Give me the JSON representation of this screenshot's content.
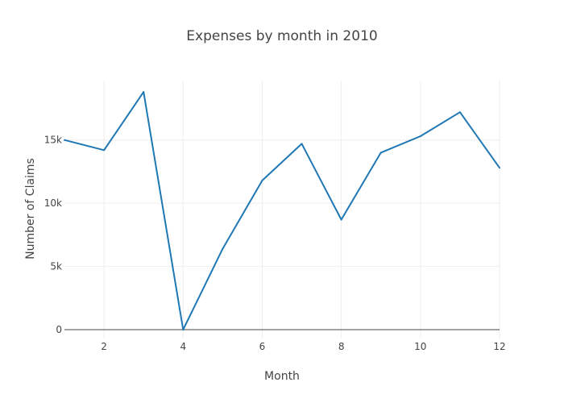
{
  "chart_data": {
    "type": "line",
    "title": "Expenses by month in 2010",
    "xlabel": "Month",
    "ylabel": "Number of Claims",
    "x": [
      1,
      2,
      3,
      4,
      5,
      6,
      7,
      8,
      9,
      10,
      11,
      12
    ],
    "series": [
      {
        "values": [
          15000,
          14200,
          18800,
          0,
          6400,
          11800,
          14700,
          8700,
          14000,
          15300,
          17200,
          12800
        ]
      }
    ],
    "xlim": [
      1,
      12
    ],
    "ylim": [
      -700,
      19700
    ],
    "xticks": [
      2,
      4,
      6,
      8,
      10,
      12
    ],
    "xtick_labels": [
      "2",
      "4",
      "6",
      "8",
      "10",
      "12"
    ],
    "yticks": [
      0,
      5000,
      10000,
      15000
    ],
    "ytick_labels": [
      "0",
      "5k",
      "10k",
      "15k"
    ],
    "grid": true,
    "legend": "none",
    "colors": {
      "line": "#1f77b4",
      "grid": "#eeeeee",
      "zeroline": "#444444",
      "text": "#444444"
    }
  }
}
